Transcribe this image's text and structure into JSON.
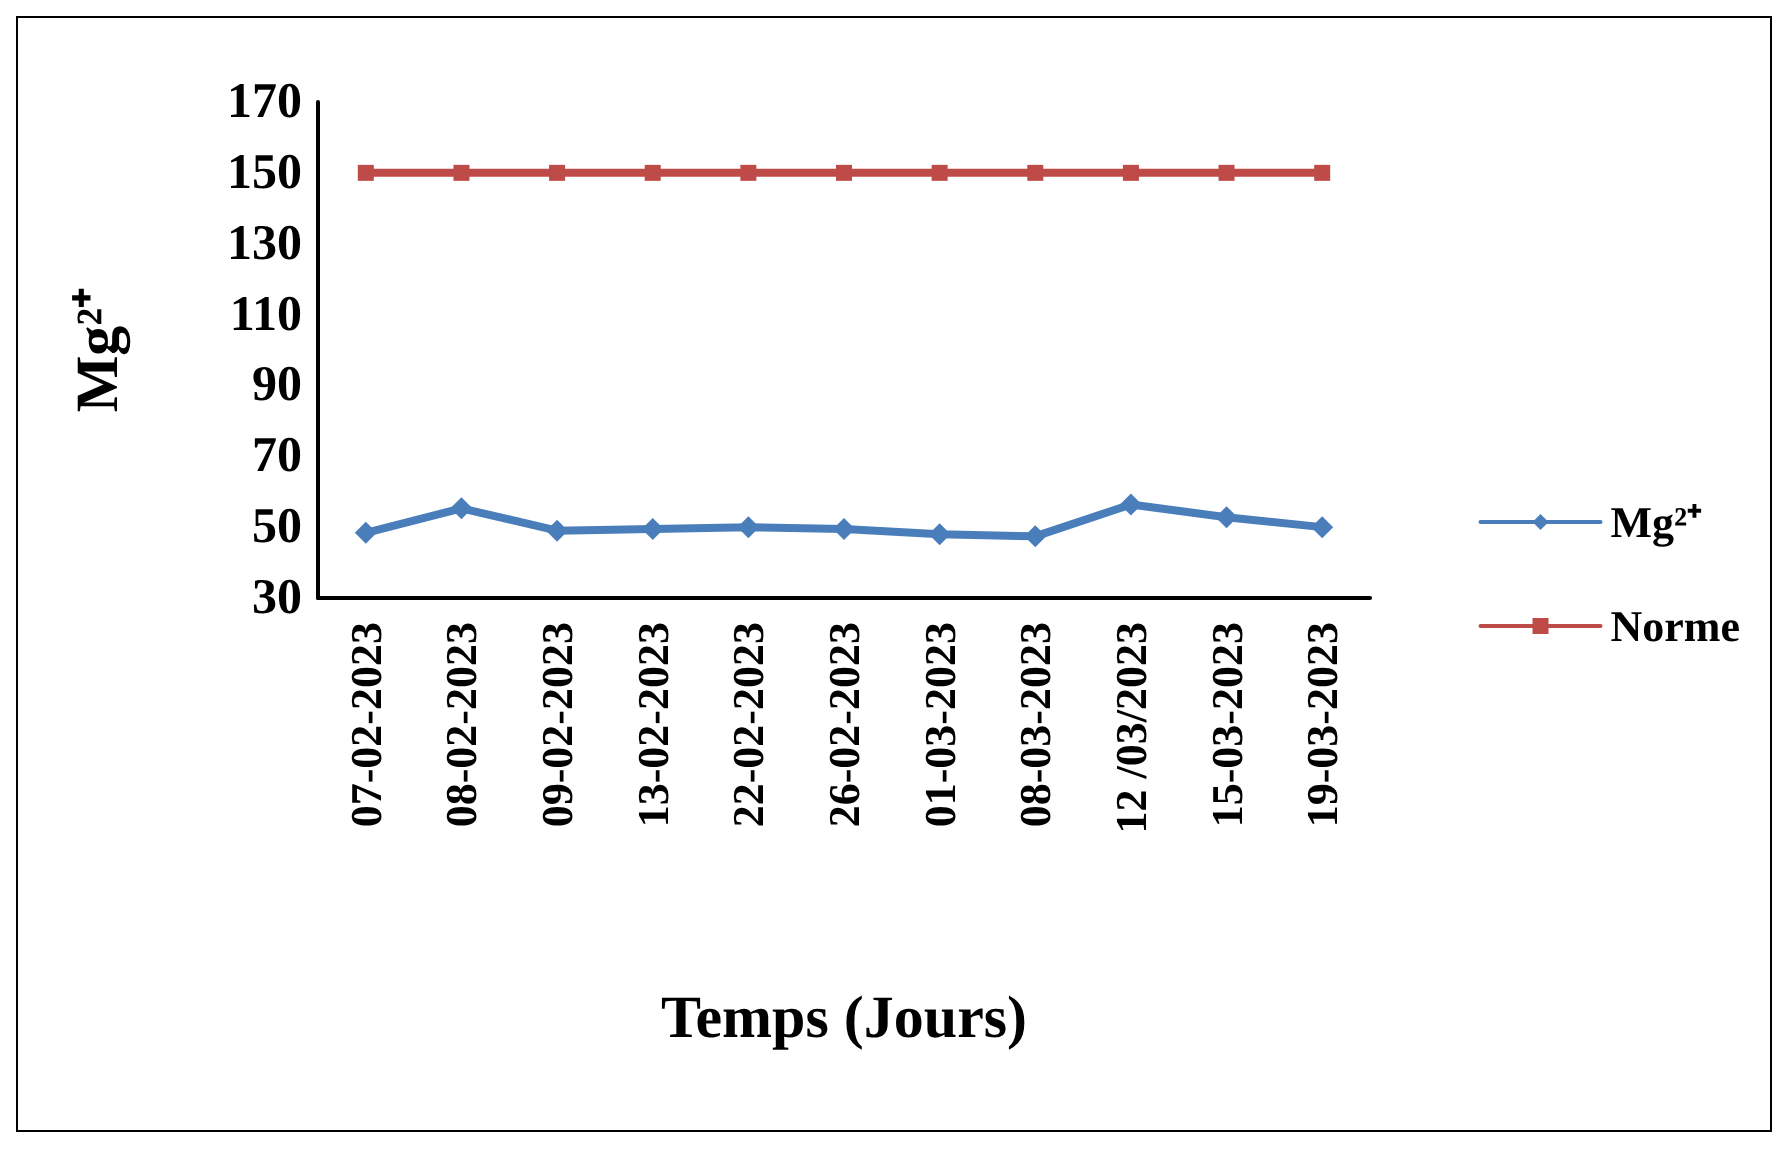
{
  "chart_data": {
    "type": "line",
    "xlabel": "Temps (Jours)",
    "ylabel": "Mg²⁺",
    "categories": [
      "07-02-2023",
      "08-02-2023",
      "09-02-2023",
      "13-02-2023",
      "22-02-2023",
      "26-02-2023",
      "01-03-2023",
      "08-03-2023",
      "12 /03/2023",
      "15-03-2023",
      "19-03-2023"
    ],
    "series": [
      {
        "name": "Mg²⁺",
        "color": "#4a7ebb",
        "marker": "diamond",
        "values": [
          48.4,
          55.3,
          49,
          49.5,
          50,
          49.5,
          48,
          47.4,
          56.4,
          52.8,
          50
        ]
      },
      {
        "name": "Norme",
        "color": "#be4b48",
        "marker": "square",
        "values": [
          150,
          150,
          150,
          150,
          150,
          150,
          150,
          150,
          150,
          150,
          150
        ]
      }
    ],
    "ylim": [
      30,
      170
    ],
    "yticks": [
      30,
      50,
      70,
      90,
      110,
      130,
      150,
      170
    ],
    "grid": false,
    "legend": "right",
    "line_style": "solid"
  }
}
